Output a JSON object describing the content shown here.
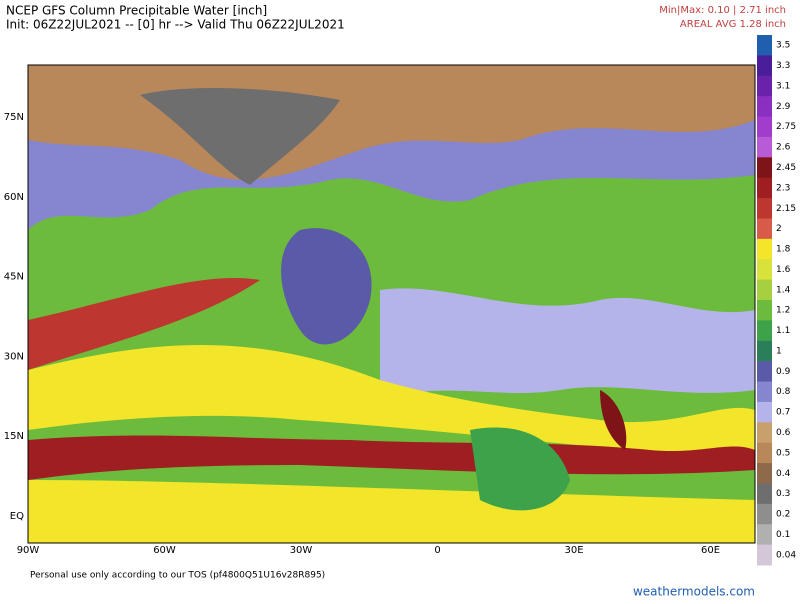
{
  "header": {
    "title": "NCEP GFS Column Precipitable Water [inch]",
    "subtitle": "Init: 06Z22JUL2021 -- [0] hr --> Valid Thu 06Z22JUL2021",
    "minmax": "Min|Max: 0.10 | 2.71 inch",
    "areal_avg": "AREAL AVG 1.28 inch"
  },
  "map": {
    "lat_labels": [
      "75N",
      "60N",
      "45N",
      "30N",
      "15N",
      "EQ"
    ],
    "lon_labels": [
      "90W",
      "60W",
      "30W",
      "0",
      "30E",
      "60E"
    ]
  },
  "colorbar": [
    {
      "label": "3.5",
      "color": "#1f5fae"
    },
    {
      "label": "3.3",
      "color": "#4a1e9a"
    },
    {
      "label": "3.1",
      "color": "#6a22ab"
    },
    {
      "label": "2.9",
      "color": "#8a2fc0"
    },
    {
      "label": "2.75",
      "color": "#a23ccc"
    },
    {
      "label": "2.6",
      "color": "#b85bd6"
    },
    {
      "label": "2.45",
      "color": "#7e1418"
    },
    {
      "label": "2.3",
      "color": "#9e1e22"
    },
    {
      "label": "2.15",
      "color": "#bd3630"
    },
    {
      "label": "2",
      "color": "#d85a48"
    },
    {
      "label": "1.8",
      "color": "#f2e52a"
    },
    {
      "label": "1.6",
      "color": "#d9e23a"
    },
    {
      "label": "1.4",
      "color": "#a6d040"
    },
    {
      "label": "1.2",
      "color": "#6dbb3c"
    },
    {
      "label": "1.1",
      "color": "#3ea24a"
    },
    {
      "label": "1",
      "color": "#2a7f5a"
    },
    {
      "label": "0.9",
      "color": "#5a5aa8"
    },
    {
      "label": "0.8",
      "color": "#8686d0"
    },
    {
      "label": "0.7",
      "color": "#b4b4ea"
    },
    {
      "label": "0.6",
      "color": "#c8a06c"
    },
    {
      "label": "0.5",
      "color": "#b8875a"
    },
    {
      "label": "0.4",
      "color": "#8f6a4a"
    },
    {
      "label": "0.3",
      "color": "#6e6e6e"
    },
    {
      "label": "0.2",
      "color": "#8e8e8e"
    },
    {
      "label": "0.1",
      "color": "#b0b0b0"
    },
    {
      "label": "0.04",
      "color": "#d4c8d8"
    }
  ],
  "footer": {
    "notice": "Personal use only according to our TOS (pf4800Q51U16v28R895)",
    "site": "weathermodels.com"
  }
}
